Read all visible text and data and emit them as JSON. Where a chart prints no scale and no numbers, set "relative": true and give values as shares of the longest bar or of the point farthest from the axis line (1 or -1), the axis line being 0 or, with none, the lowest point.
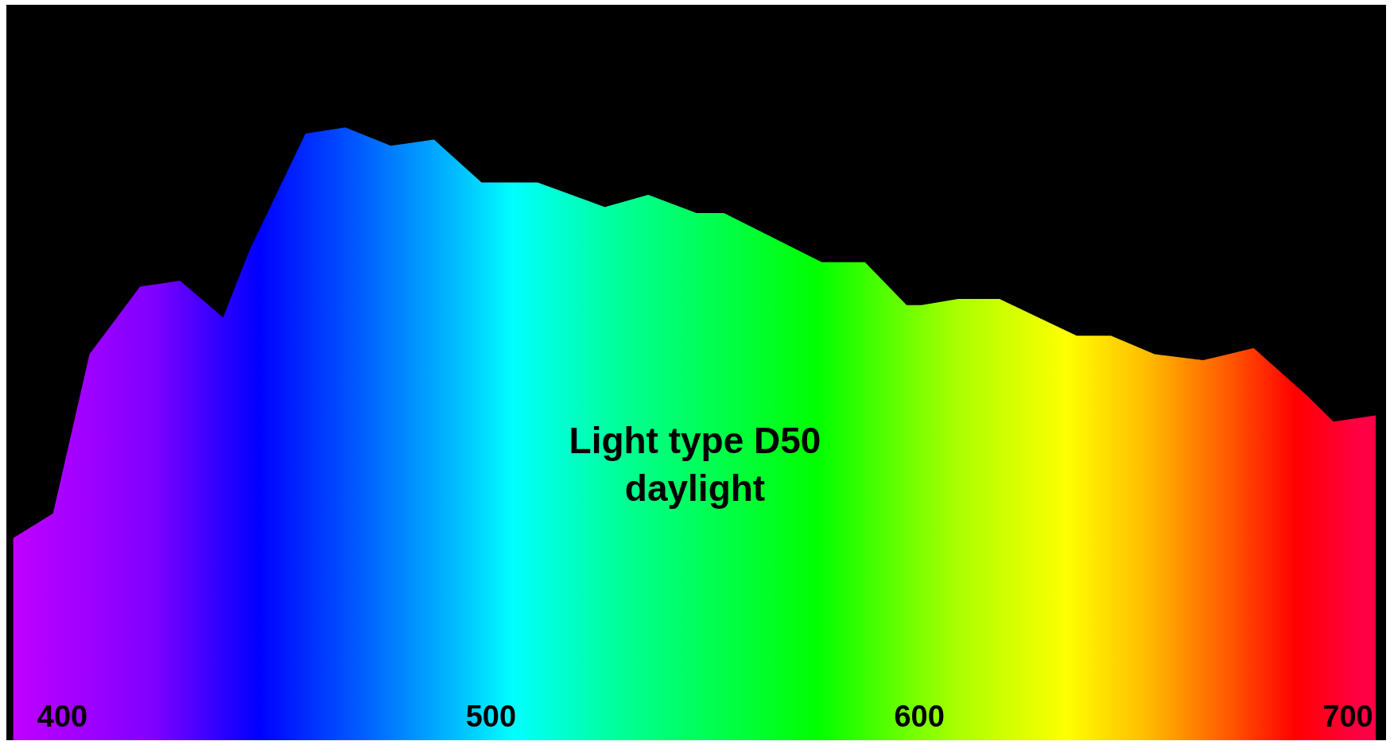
{
  "chart_data": {
    "type": "area",
    "relative": true,
    "annotations": [
      "Light type D50",
      "daylight"
    ],
    "xlim": [
      387,
      709
    ],
    "xticks": [
      400,
      500,
      600,
      700
    ],
    "grid": false,
    "series": [
      {
        "x": [
          388.6,
          397.9,
          406.4,
          418.2,
          427.5,
          437.6,
          443.8,
          456.8,
          466.1,
          476.7,
          486.8,
          497.9,
          511,
          526.7,
          536.8,
          548.1,
          554.5,
          577.3,
          587.4,
          597.1,
          600.6,
          609.1,
          618.8,
          636.8,
          644.8,
          655,
          666.3,
          678.1,
          690.9,
          696.7,
          706.6
        ],
        "values": [
          0.33,
          0.37,
          0.63,
          0.74,
          0.75,
          0.69,
          0.8,
          0.99,
          1,
          0.97,
          0.98,
          0.91,
          0.91,
          0.87,
          0.89,
          0.86,
          0.86,
          0.78,
          0.78,
          0.71,
          0.71,
          0.72,
          0.72,
          0.66,
          0.66,
          0.63,
          0.62,
          0.64,
          0.56,
          0.52,
          0.53
        ]
      }
    ]
  }
}
